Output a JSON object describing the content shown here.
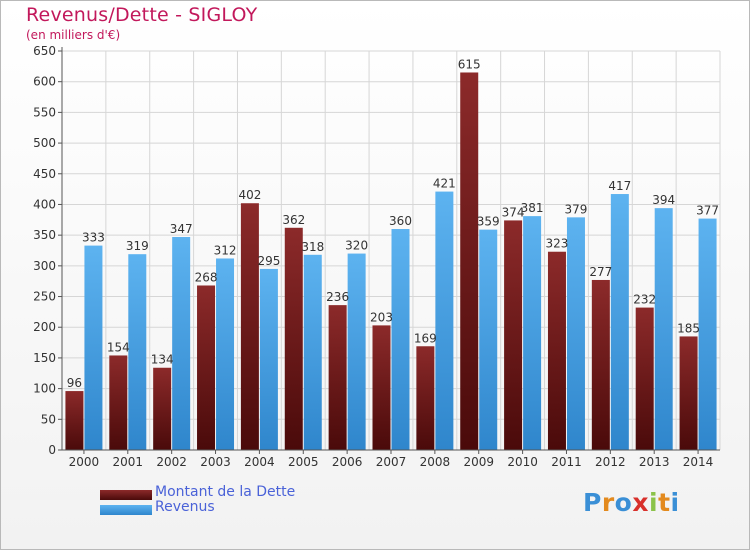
{
  "chart_data": {
    "type": "bar",
    "title": "Revenus/Dette - SIGLOY",
    "subtitle": "(en milliers d'€)",
    "categories": [
      "2000",
      "2001",
      "2002",
      "2003",
      "2004",
      "2005",
      "2006",
      "2007",
      "2008",
      "2009",
      "2010",
      "2011",
      "2012",
      "2013",
      "2014"
    ],
    "series": [
      {
        "name": "Montant de la Dette",
        "color": "#7a1a1a",
        "values": [
          96,
          154,
          134,
          268,
          402,
          362,
          236,
          203,
          169,
          615,
          374,
          323,
          277,
          232,
          185
        ]
      },
      {
        "name": "Revenus",
        "color": "#4da3e6",
        "values": [
          333,
          319,
          347,
          312,
          295,
          318,
          320,
          360,
          421,
          359,
          381,
          379,
          417,
          394,
          377
        ]
      }
    ],
    "ylim": [
      0,
      650
    ],
    "yticks": [
      0,
      50,
      100,
      150,
      200,
      250,
      300,
      350,
      400,
      450,
      500,
      550,
      600,
      650
    ],
    "grid": true,
    "legend": "bottom-left"
  },
  "logo": {
    "letters": [
      "P",
      "r",
      "o",
      "x",
      "i",
      "t",
      "i"
    ],
    "colors": [
      "#3a8fd6",
      "#e38a1e",
      "#3a8fd6",
      "#d8302b",
      "#8bc34a",
      "#e38a1e",
      "#3a8fd6"
    ]
  }
}
